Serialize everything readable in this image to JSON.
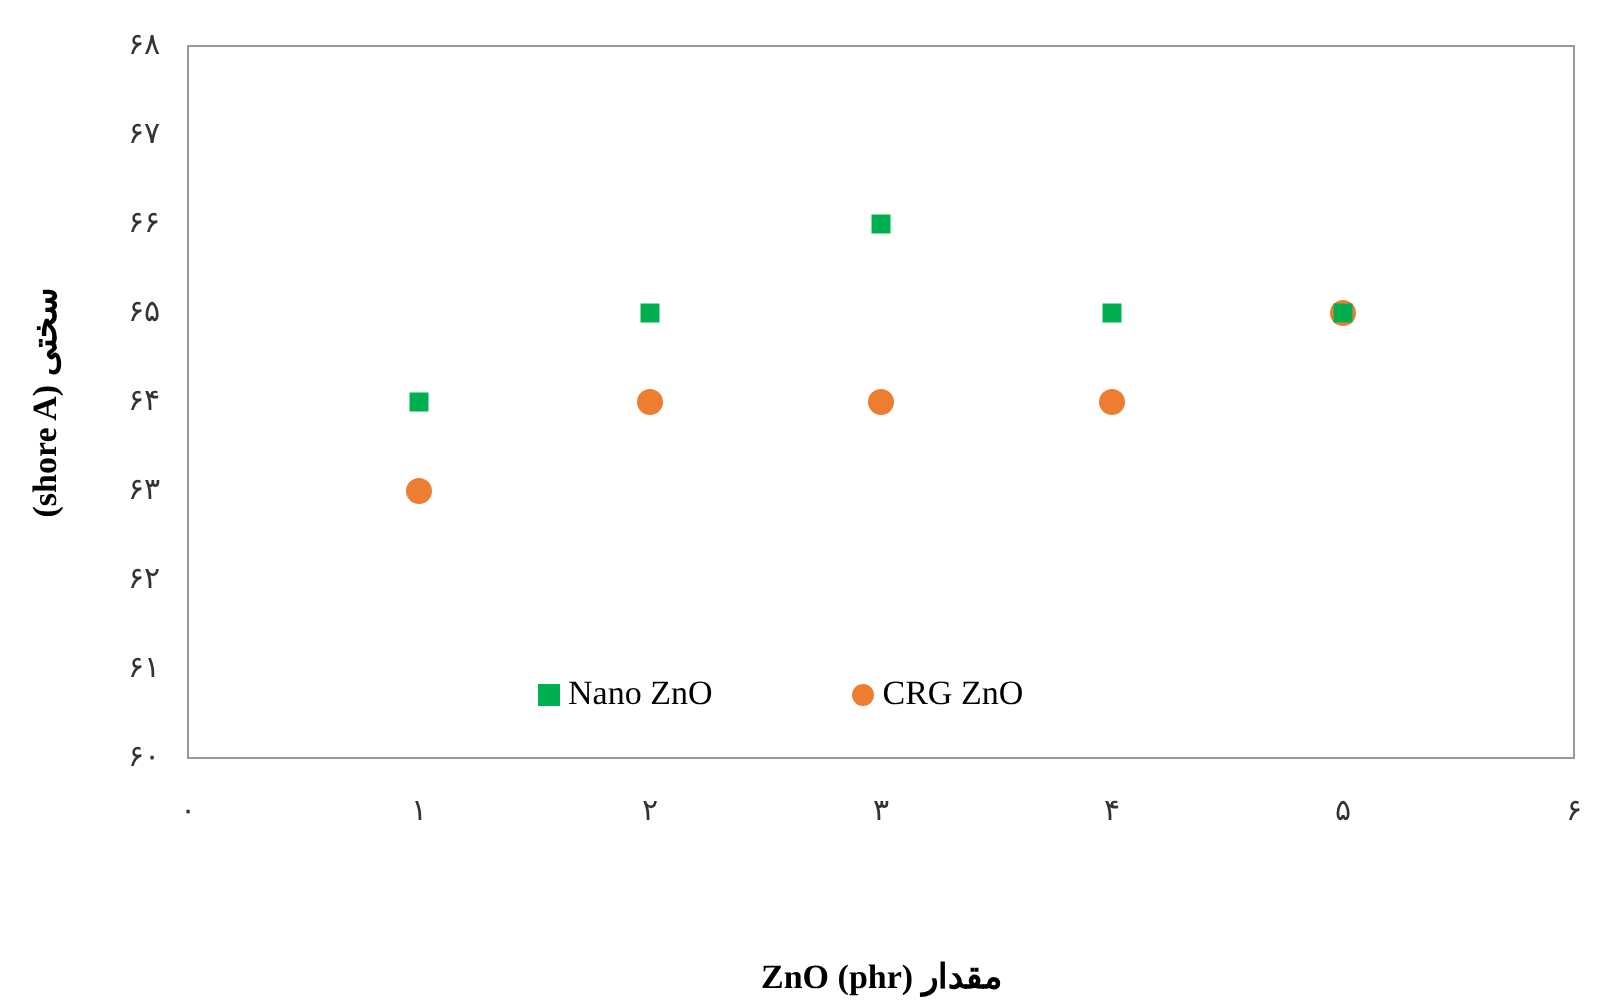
{
  "chart_data": {
    "type": "scatter",
    "xlabel": "مقدار (phr) ZnO",
    "ylabel": "سختی (shore A)",
    "x": [
      1,
      2,
      3,
      4,
      5
    ],
    "series": [
      {
        "name": "Nano ZnO",
        "color": "#00b050",
        "marker": "square",
        "values": [
          64,
          65,
          66,
          65,
          65
        ]
      },
      {
        "name": "CRG ZnO",
        "color": "#ed7d31",
        "marker": "circle",
        "values": [
          63,
          64,
          64,
          64,
          65
        ]
      }
    ],
    "xlim": [
      0,
      6
    ],
    "xticks": [
      {
        "value": 0,
        "label": "۰"
      },
      {
        "value": 1,
        "label": "۱"
      },
      {
        "value": 2,
        "label": "۲"
      },
      {
        "value": 3,
        "label": "۳"
      },
      {
        "value": 4,
        "label": "۴"
      },
      {
        "value": 5,
        "label": "۵"
      },
      {
        "value": 6,
        "label": "۶"
      }
    ],
    "ylim": [
      60,
      68
    ],
    "yticks": [
      {
        "value": 60,
        "label": "۶۰"
      },
      {
        "value": 61,
        "label": "۶۱"
      },
      {
        "value": 62,
        "label": "۶۲"
      },
      {
        "value": 63,
        "label": "۶۳"
      },
      {
        "value": 64,
        "label": "۶۴"
      },
      {
        "value": 65,
        "label": "۶۵"
      },
      {
        "value": 66,
        "label": "۶۶"
      },
      {
        "value": 67,
        "label": "۶۷"
      },
      {
        "value": 68,
        "label": "۶۸"
      }
    ],
    "grid": false,
    "legend": "bottom"
  }
}
